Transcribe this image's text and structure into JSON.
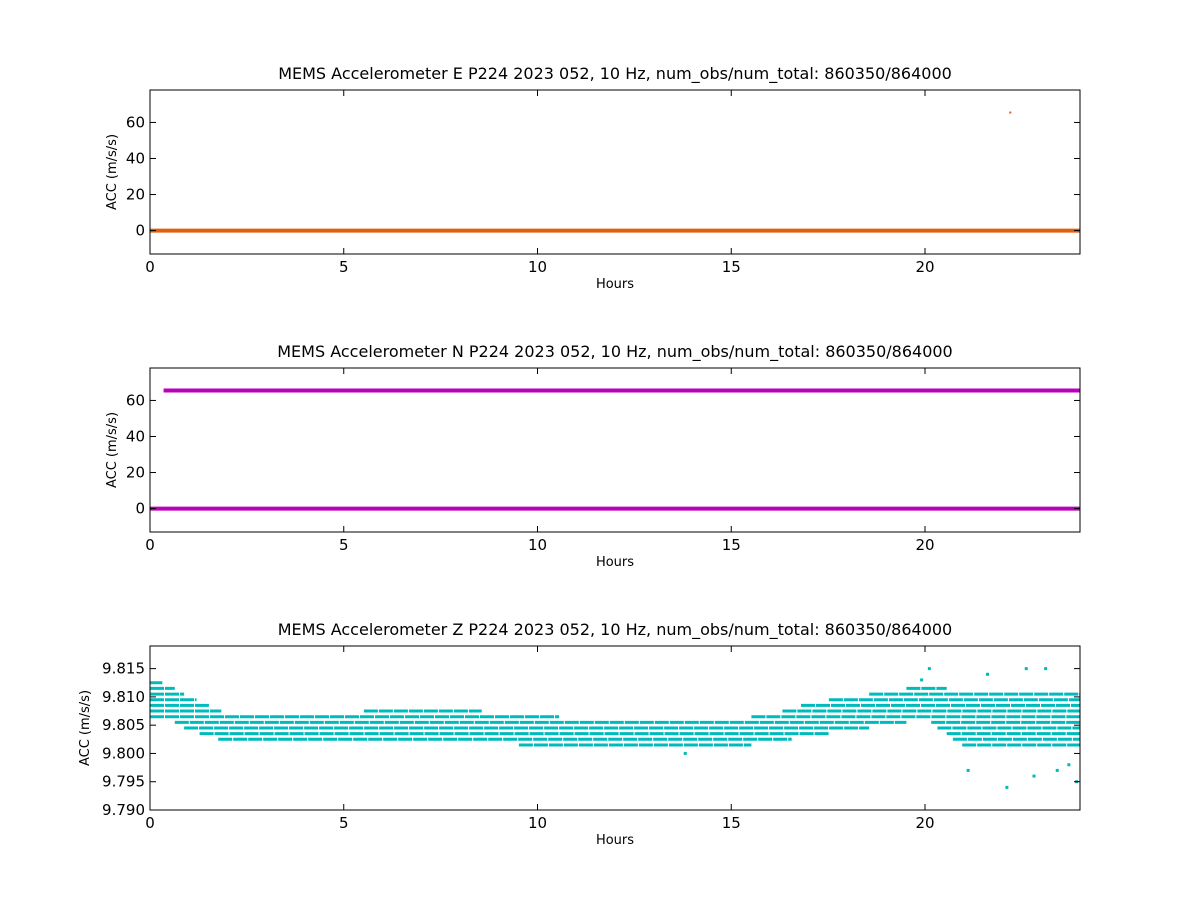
{
  "chart_data": [
    {
      "type": "scatter",
      "title": "MEMS Accelerometer E P224 2023 052, 10 Hz, num_obs/num_total: 860350/864000",
      "xlabel": "Hours",
      "ylabel": "ACC (m/s/s)",
      "xlim": [
        0,
        24
      ],
      "ylim": [
        -13,
        78
      ],
      "xticks": [
        "0",
        "5",
        "10",
        "15",
        "20"
      ],
      "xtick_values": [
        0,
        5,
        10,
        15,
        20
      ],
      "yticks": [
        "0",
        "20",
        "40",
        "60"
      ],
      "ytick_values": [
        0,
        20,
        40,
        60
      ],
      "color": "#e06010",
      "series": [
        {
          "segments": [
            {
              "x_start": 0,
              "x_end": 24,
              "y": 0
            }
          ],
          "outliers": [
            {
              "x": 22.2,
              "y": 65.5
            }
          ]
        }
      ]
    },
    {
      "type": "scatter",
      "title": "MEMS Accelerometer N P224 2023 052, 10 Hz, num_obs/num_total: 860350/864000",
      "xlabel": "Hours",
      "ylabel": "ACC (m/s/s)",
      "xlim": [
        0,
        24
      ],
      "ylim": [
        -13,
        78
      ],
      "xticks": [
        "0",
        "5",
        "10",
        "15",
        "20"
      ],
      "xtick_values": [
        0,
        5,
        10,
        15,
        20
      ],
      "yticks": [
        "0",
        "20",
        "40",
        "60"
      ],
      "ytick_values": [
        0,
        20,
        40,
        60
      ],
      "color": "#bb00bb",
      "series": [
        {
          "segments": [
            {
              "x_start": 0.35,
              "x_end": 24,
              "y": 65.5
            },
            {
              "x_start": 0,
              "x_end": 24,
              "y": 0
            }
          ],
          "outliers": []
        }
      ]
    },
    {
      "type": "scatter",
      "title": "MEMS Accelerometer Z P224 2023 052, 10 Hz, num_obs/num_total: 860350/864000",
      "xlabel": "Hours",
      "ylabel": "ACC (m/s/s)",
      "xlim": [
        0,
        24
      ],
      "ylim": [
        9.79,
        9.819
      ],
      "xticks": [
        "0",
        "5",
        "10",
        "15",
        "20"
      ],
      "xtick_values": [
        0,
        5,
        10,
        15,
        20
      ],
      "yticks": [
        "9.790",
        "9.795",
        "9.800",
        "9.805",
        "9.810",
        "9.815"
      ],
      "ytick_values": [
        9.79,
        9.795,
        9.8,
        9.805,
        9.81,
        9.815
      ],
      "color": "#00bbbb",
      "band": {
        "hours": [
          0,
          0.5,
          1,
          2,
          3,
          4,
          5,
          6,
          7,
          8,
          9,
          10,
          11,
          12,
          13,
          14,
          15,
          16,
          17,
          18,
          19,
          20,
          21,
          22,
          23,
          24
        ],
        "low": [
          9.806,
          9.806,
          9.804,
          9.802,
          9.802,
          9.802,
          9.802,
          9.802,
          9.802,
          9.802,
          9.802,
          9.801,
          9.801,
          9.801,
          9.801,
          9.801,
          9.801,
          9.802,
          9.803,
          9.804,
          9.805,
          9.806,
          9.801,
          9.801,
          9.801,
          9.801
        ],
        "high": [
          9.813,
          9.812,
          9.81,
          9.807,
          9.807,
          9.807,
          9.807,
          9.808,
          9.808,
          9.808,
          9.807,
          9.807,
          9.806,
          9.806,
          9.806,
          9.806,
          9.806,
          9.807,
          9.809,
          9.81,
          9.811,
          9.812,
          9.811,
          9.811,
          9.811,
          9.811
        ]
      },
      "outliers": [
        {
          "x": 13.8,
          "y": 9.8
        },
        {
          "x": 21.1,
          "y": 9.797
        },
        {
          "x": 22.1,
          "y": 9.794
        },
        {
          "x": 22.6,
          "y": 9.815
        },
        {
          "x": 22.8,
          "y": 9.796
        },
        {
          "x": 23.1,
          "y": 9.815
        },
        {
          "x": 23.4,
          "y": 9.797
        },
        {
          "x": 23.7,
          "y": 9.798
        },
        {
          "x": 23.9,
          "y": 9.795
        },
        {
          "x": 20.1,
          "y": 9.815
        },
        {
          "x": 21.6,
          "y": 9.814
        },
        {
          "x": 19.9,
          "y": 9.813
        }
      ]
    }
  ]
}
